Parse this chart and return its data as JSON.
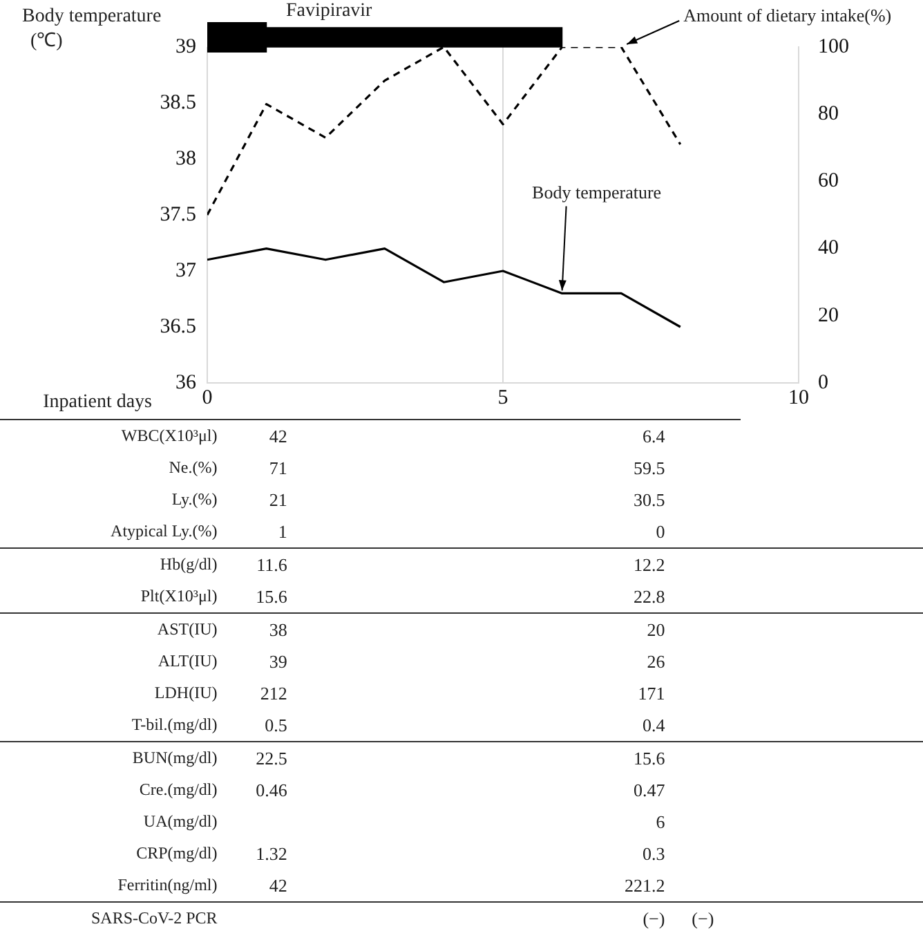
{
  "chart_data": [
    {
      "type": "bar",
      "orientation": "horizontal",
      "categories": [
        null
      ],
      "series": [
        {
          "color": "#000000",
          "values": [
            1
          ],
          "base": [
            0
          ]
        },
        {
          "color": "#000000",
          "values": [
            6
          ],
          "base": [
            0
          ]
        }
      ],
      "xlim": [
        0,
        10
      ],
      "tick_labels": false,
      "annotations": [
        "Favipiravir"
      ],
      "legend": false
    },
    {
      "type": "line",
      "xlabel": "Inpatient days",
      "ylabel": "Body temperature\n(℃)",
      "x": [
        0,
        1,
        2,
        3,
        4,
        5,
        6,
        7,
        8
      ],
      "series": [
        {
          "name": "Body temperature",
          "color": "#000000",
          "line_style": "solid",
          "values": [
            37.1,
            37.2,
            37.1,
            37.2,
            36.9,
            37.0,
            36.8,
            36.8,
            36.5
          ]
        },
        {
          "name": "Amount of dietary intake(%)",
          "color": "#000000",
          "line_style": "dashed",
          "axis": "y2",
          "values": [
            50,
            83,
            73,
            90,
            100,
            77,
            100,
            100,
            71
          ]
        }
      ],
      "xlim": [
        0,
        10
      ],
      "xticks": [
        0,
        5,
        10
      ],
      "ylim": [
        36,
        39
      ],
      "yticks": [
        36,
        36.5,
        37,
        37.5,
        38,
        38.5,
        39
      ],
      "y2lim": [
        0,
        100
      ],
      "y2ticks": [
        0,
        20,
        40,
        60,
        80,
        100
      ],
      "grid": "x",
      "marker": "none",
      "legend": false
    },
    {
      "type": "other",
      "categories": [
        null,
        null,
        null
      ],
      "y_categories": [
        "WBC(X10³μl)",
        "Ne.(%)",
        "Ly.(%)",
        "Atypical Ly.(%)",
        "Hb(g/dl)",
        "Plt(X10³μl)",
        "AST(IU)",
        "ALT(IU)",
        "LDH(IU)",
        "T-bil.(mg/dl)",
        "BUN(mg/dl)",
        "Cre.(mg/dl)",
        "UA(mg/dl)",
        "CRP(mg/dl)",
        "Ferritin(ng/ml)",
        "SARS-CoV-2 PCR"
      ],
      "cell_labels": [
        [
          "42",
          "6.4",
          null
        ],
        [
          "71",
          "59.5",
          null
        ],
        [
          "21",
          "30.5",
          null
        ],
        [
          "1",
          "0",
          null
        ],
        [
          "11.6",
          "12.2",
          null
        ],
        [
          "15.6",
          "22.8",
          null
        ],
        [
          "38",
          "20",
          null
        ],
        [
          "39",
          "26",
          null
        ],
        [
          "212",
          "171",
          null
        ],
        [
          "0.5",
          "0.4",
          null
        ],
        [
          "22.5",
          "15.6",
          null
        ],
        [
          "0.46",
          "0.47",
          null
        ],
        [
          null,
          "6",
          null
        ],
        [
          "1.32",
          "0.3",
          null
        ],
        [
          "42",
          "221.2",
          null
        ],
        [
          null,
          "(−)",
          "(−)"
        ]
      ]
    }
  ]
}
